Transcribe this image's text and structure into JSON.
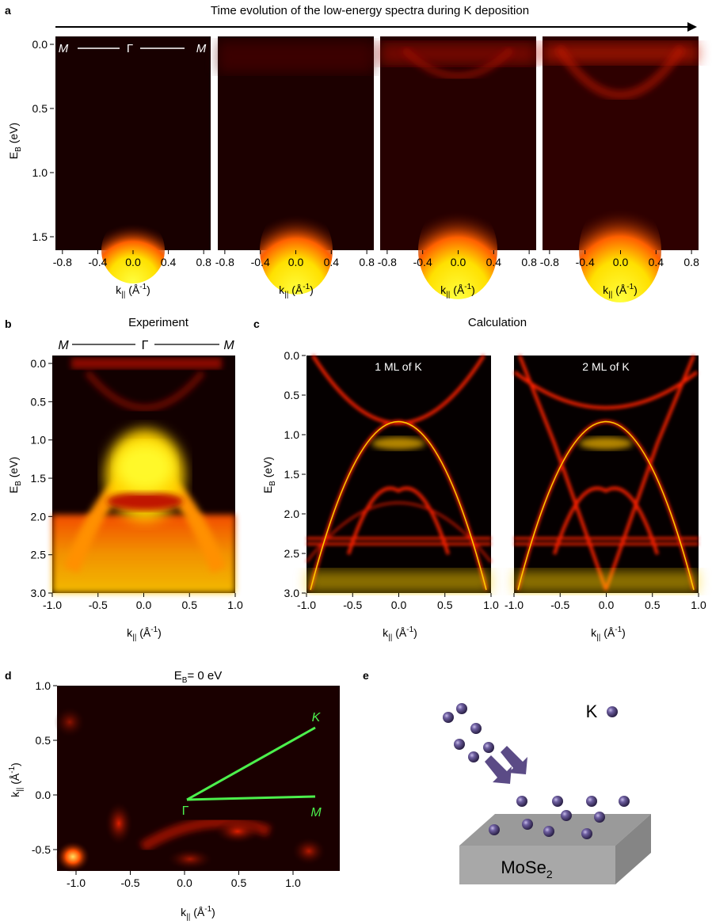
{
  "panel_a": {
    "letter": "a",
    "title": "Time evolution of the low-energy spectra during K deposition",
    "path_label": {
      "left": "M",
      "center": "Γ",
      "right": "M"
    },
    "y_label": "E",
    "y_label_sub": "B",
    "y_label_unit": " (eV)",
    "y_ticks": [
      "0.0",
      "0.5",
      "1.0",
      "1.5"
    ],
    "x_ticks": [
      "-0.8",
      "-0.4",
      "0.0",
      "0.4",
      "0.8"
    ],
    "x_label": "k",
    "x_label_sub": "||",
    "x_label_unit": " (Å",
    "x_label_sup": "-1",
    "x_label_close": ")"
  },
  "panel_b": {
    "letter": "b",
    "title": "Experiment",
    "path_label": {
      "left": "M",
      "center": "Γ",
      "right": "M"
    },
    "y_label": "E",
    "y_label_sub": "B",
    "y_label_unit": " (eV)",
    "y_ticks": [
      "0.0",
      "0.5",
      "1.0",
      "1.5",
      "2.0",
      "2.5",
      "3.0"
    ],
    "x_ticks": [
      "-1.0",
      "-0.5",
      "0.0",
      "0.5",
      "1.0"
    ],
    "x_label": "k",
    "x_label_sub": "||",
    "x_label_unit": " (Å",
    "x_label_sup": "-1",
    "x_label_close": ")"
  },
  "panel_c": {
    "letter": "c",
    "title": "Calculation",
    "sub1": "1 ML of K",
    "sub2": "2 ML of K",
    "y_label": "E",
    "y_label_sub": "B",
    "y_label_unit": " (eV)",
    "y_ticks": [
      "0.0",
      "0.5",
      "1.0",
      "1.5",
      "2.0",
      "2.5",
      "3.0"
    ],
    "x_ticks_1": [
      "-1.0",
      "-0.5",
      "0.0",
      "0.5",
      "1.0"
    ],
    "x_ticks_2": [
      "-1.0",
      "-0.5",
      "0.0",
      "0.5",
      "1.0"
    ],
    "x_label": "k",
    "x_label_sub": "||",
    "x_label_unit": " (Å",
    "x_label_sup": "-1",
    "x_label_close": ")"
  },
  "panel_d": {
    "letter": "d",
    "title": "E",
    "title_sub": "B",
    "title_rest": "= 0 eV",
    "y_label": "k",
    "y_label_sub": "||",
    "y_label_unit": " (Å",
    "y_label_sup": "-1",
    "y_label_close": ")",
    "y_ticks": [
      "1.0",
      "0.5",
      "0.0",
      "-0.5"
    ],
    "x_ticks": [
      "-1.0",
      "-0.5",
      "0.0",
      "0.5",
      "1.0"
    ],
    "x_label": "k",
    "x_label_sub": "||",
    "x_label_unit": " (Å",
    "x_label_sup": "-1",
    "x_label_close": ")",
    "pt_gamma": "Γ",
    "pt_k": "K",
    "pt_m": "M",
    "line_color": "#4cf04c"
  },
  "panel_e": {
    "letter": "e",
    "legend_label": "K",
    "substrate": "MoSe",
    "substrate_sub": "2",
    "atom_color": "#4d3f73",
    "arrow_color": "#5b4b86",
    "slab_top": "#9a9a9a",
    "slab_front": "#a5a5a5",
    "slab_side": "#8a8a8a"
  },
  "colormap": [
    "#000000",
    "#3a0000",
    "#8a0000",
    "#d41400",
    "#ff5a00",
    "#ffb400",
    "#ffff30"
  ]
}
